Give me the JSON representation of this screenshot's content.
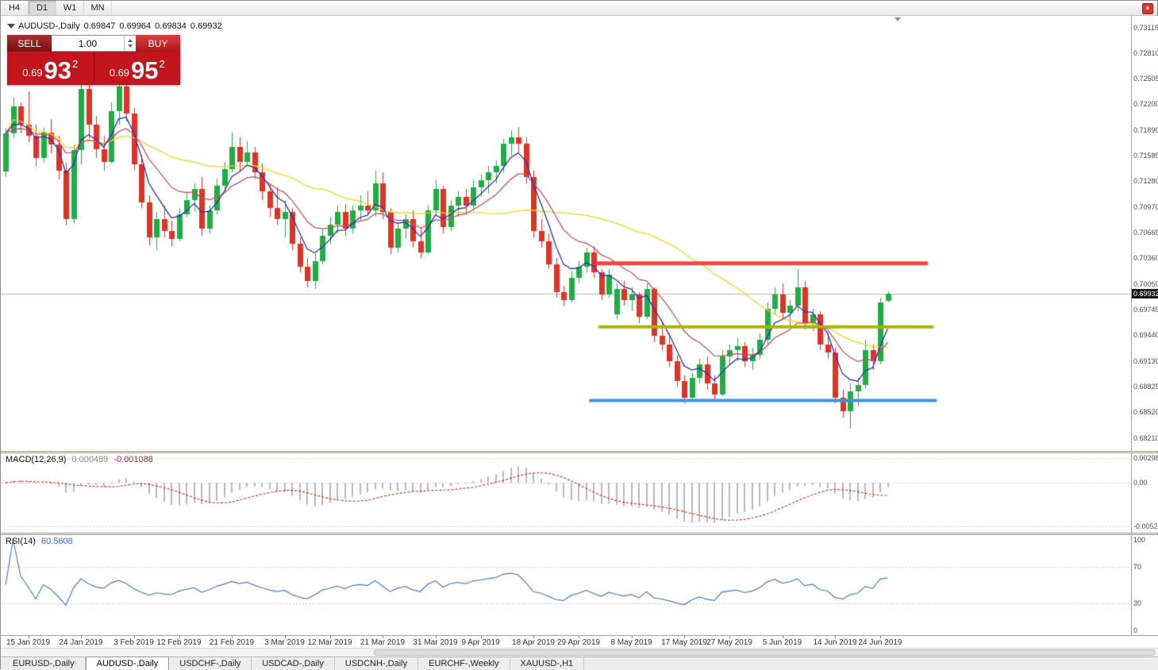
{
  "toolbar": {
    "timeframes": [
      "H4",
      "D1",
      "W1",
      "MN"
    ],
    "active": "D1"
  },
  "chart": {
    "title": "AUDUSD-,Daily",
    "open": "0.69847",
    "high": "0.69964",
    "low": "0.69834",
    "close": "0.69932",
    "bid_label": "0.69932"
  },
  "trade_panel": {
    "sell_label": "SELL",
    "buy_label": "BUY",
    "volume": "1.00",
    "sell_price": {
      "small": "0.69",
      "big": "93",
      "sup": "2"
    },
    "buy_price": {
      "small": "0.69",
      "big": "95",
      "sup": "2"
    }
  },
  "indicators": {
    "macd": {
      "name": "MACD(12,26,9)",
      "value_main": "0.000489",
      "value_signal": "-0.001088"
    },
    "rsi": {
      "name": "RSI(14)",
      "value": "60.5608"
    }
  },
  "tabs": {
    "items": [
      "EURUSD-,Daily",
      "AUDUSD-,Daily",
      "USDCHF-,Daily",
      "USDCAD-,Daily",
      "USDCNH-,Daily",
      "EURCHF-,Weekly",
      "XAUUSD-,H1"
    ],
    "active_index": 1
  },
  "colors": {
    "candle_up": "#22ad44",
    "candle_down": "#e03328",
    "bid_line": "#b8b8b8",
    "panel_red": "#c2151d"
  },
  "chart_data": {
    "type": "candlestick",
    "symbol": "AUDUSD",
    "timeframe": "Daily",
    "bid": 0.69932,
    "price_scale": [
      "0.73115",
      "0.72810",
      "0.72505",
      "0.72200",
      "0.71890",
      "0.71585",
      "0.71280",
      "0.70970",
      "0.70665",
      "0.70360",
      "0.70050",
      "0.69745",
      "0.69440",
      "0.69130",
      "0.68825",
      "0.68520",
      "0.68210"
    ],
    "date_labels": [
      {
        "label": "15 Jan 2019",
        "idx": 3
      },
      {
        "label": "24 Jan 2019",
        "idx": 10
      },
      {
        "label": "3 Feb 2019",
        "idx": 17
      },
      {
        "label": "12 Feb 2019",
        "idx": 23
      },
      {
        "label": "21 Feb 2019",
        "idx": 30
      },
      {
        "label": "3 Mar 2019",
        "idx": 37
      },
      {
        "label": "12 Mar 2019",
        "idx": 43
      },
      {
        "label": "21 Mar 2019",
        "idx": 50
      },
      {
        "label": "31 Mar 2019",
        "idx": 57
      },
      {
        "label": "9 Apr 2019",
        "idx": 63
      },
      {
        "label": "18 Apr 2019",
        "idx": 70
      },
      {
        "label": "29 Apr 2019",
        "idx": 76
      },
      {
        "label": "8 May 2019",
        "idx": 83
      },
      {
        "label": "17 May 2019",
        "idx": 90
      },
      {
        "label": "27 May 2019",
        "idx": 96
      },
      {
        "label": "5 Jun 2019",
        "idx": 103
      },
      {
        "label": "14 Jun 2019",
        "idx": 110
      },
      {
        "label": "24 Jun 2019",
        "idx": 116
      }
    ],
    "hlines": [
      {
        "name": "resistance-line",
        "color": "#f8453f",
        "price": 0.703,
        "from_idx": 78.4,
        "to_idx": 122.3,
        "width": 5
      },
      {
        "name": "mid-level-line",
        "color": "#a9b408",
        "price": 0.6954,
        "from_idx": 78.6,
        "to_idx": 123.1,
        "width": 4
      },
      {
        "name": "support-line",
        "color": "#4191dd",
        "price": 0.6866,
        "from_idx": 77.4,
        "to_idx": 123.5,
        "width": 4
      }
    ],
    "moving_averages": [
      {
        "name": "slow-ma",
        "type": "sma",
        "period": 34,
        "color": "#f2d21f"
      },
      {
        "name": "medium-ma",
        "type": "ema",
        "period": 12,
        "color": "#c25060"
      },
      {
        "name": "fast-ma",
        "type": "ema",
        "period": 5,
        "color": "#3030b0"
      }
    ],
    "macd": {
      "fast": 12,
      "slow": 26,
      "signal": 9,
      "scale": [
        "0.002984",
        "0.00",
        "-0.00525"
      ],
      "histogram_color": "#b9b9b9",
      "signal_color": "#cf2a27"
    },
    "rsi": {
      "period": 14,
      "levels": [
        70,
        30
      ],
      "scale": [
        "100",
        "70",
        "30",
        "0"
      ],
      "line_color": "#4a7db8"
    },
    "candles": [
      [
        0.714,
        0.7192,
        0.7133,
        0.7185
      ],
      [
        0.7185,
        0.7228,
        0.718,
        0.7218
      ],
      [
        0.7218,
        0.7222,
        0.7185,
        0.7196
      ],
      [
        0.7196,
        0.7236,
        0.7175,
        0.7182
      ],
      [
        0.7182,
        0.7196,
        0.7146,
        0.7156
      ],
      [
        0.7156,
        0.7192,
        0.715,
        0.7186
      ],
      [
        0.7186,
        0.7202,
        0.7162,
        0.7172
      ],
      [
        0.7172,
        0.7182,
        0.713,
        0.7141
      ],
      [
        0.7141,
        0.715,
        0.7075,
        0.7083
      ],
      [
        0.7083,
        0.7172,
        0.7078,
        0.7165
      ],
      [
        0.7165,
        0.7246,
        0.7148,
        0.7238
      ],
      [
        0.7238,
        0.7243,
        0.718,
        0.7196
      ],
      [
        0.7196,
        0.7206,
        0.7156,
        0.7166
      ],
      [
        0.7166,
        0.7182,
        0.7141,
        0.7151
      ],
      [
        0.7151,
        0.7222,
        0.7149,
        0.7212
      ],
      [
        0.7212,
        0.7249,
        0.7196,
        0.7241
      ],
      [
        0.7241,
        0.7246,
        0.72,
        0.7209
      ],
      [
        0.7209,
        0.7216,
        0.7141,
        0.7148
      ],
      [
        0.7148,
        0.7159,
        0.7096,
        0.7103
      ],
      [
        0.7103,
        0.7111,
        0.7052,
        0.7061
      ],
      [
        0.7061,
        0.7091,
        0.7046,
        0.7083
      ],
      [
        0.7083,
        0.7099,
        0.7061,
        0.7069
      ],
      [
        0.7069,
        0.7081,
        0.7051,
        0.7059
      ],
      [
        0.7059,
        0.7096,
        0.7056,
        0.7089
      ],
      [
        0.7089,
        0.7116,
        0.7086,
        0.7106
      ],
      [
        0.7106,
        0.7126,
        0.7091,
        0.7119
      ],
      [
        0.7119,
        0.7133,
        0.7063,
        0.7071
      ],
      [
        0.7071,
        0.7099,
        0.7066,
        0.7093
      ],
      [
        0.7093,
        0.7131,
        0.7089,
        0.7123
      ],
      [
        0.7123,
        0.7151,
        0.7116,
        0.7143
      ],
      [
        0.7143,
        0.7186,
        0.7139,
        0.7169
      ],
      [
        0.7169,
        0.7181,
        0.7141,
        0.7151
      ],
      [
        0.7151,
        0.7176,
        0.7146,
        0.7163
      ],
      [
        0.7163,
        0.7169,
        0.7131,
        0.7139
      ],
      [
        0.7139,
        0.7149,
        0.7106,
        0.7116
      ],
      [
        0.7116,
        0.7126,
        0.7086,
        0.7096
      ],
      [
        0.7096,
        0.7121,
        0.7076,
        0.7083
      ],
      [
        0.7083,
        0.7106,
        0.7061,
        0.7091
      ],
      [
        0.7091,
        0.7096,
        0.7046,
        0.7053
      ],
      [
        0.7053,
        0.7061,
        0.7019,
        0.7026
      ],
      [
        0.7026,
        0.7036,
        0.7001,
        0.7009
      ],
      [
        0.7009,
        0.7041,
        0.6999,
        0.7033
      ],
      [
        0.7033,
        0.7071,
        0.7029,
        0.7063
      ],
      [
        0.7063,
        0.7086,
        0.7053,
        0.7076
      ],
      [
        0.7076,
        0.7099,
        0.7066,
        0.7091
      ],
      [
        0.7091,
        0.7101,
        0.7063,
        0.7071
      ],
      [
        0.7071,
        0.7099,
        0.7066,
        0.7093
      ],
      [
        0.7093,
        0.7111,
        0.7081,
        0.7099
      ],
      [
        0.7099,
        0.7116,
        0.7089,
        0.7093
      ],
      [
        0.7093,
        0.7141,
        0.7086,
        0.7126
      ],
      [
        0.7126,
        0.7139,
        0.7083,
        0.7091
      ],
      [
        0.7091,
        0.7096,
        0.7041,
        0.7049
      ],
      [
        0.7049,
        0.7079,
        0.7043,
        0.7071
      ],
      [
        0.7071,
        0.7089,
        0.7059,
        0.7083
      ],
      [
        0.7083,
        0.7093,
        0.7049,
        0.7056
      ],
      [
        0.7056,
        0.7073,
        0.7036,
        0.7043
      ],
      [
        0.7043,
        0.7099,
        0.7041,
        0.7093
      ],
      [
        0.7093,
        0.7129,
        0.7089,
        0.7119
      ],
      [
        0.7119,
        0.7123,
        0.7066,
        0.7073
      ],
      [
        0.7073,
        0.7106,
        0.7069,
        0.7099
      ],
      [
        0.7099,
        0.7116,
        0.7086,
        0.7109
      ],
      [
        0.7109,
        0.7119,
        0.7089,
        0.7099
      ],
      [
        0.7099,
        0.7129,
        0.7093,
        0.7121
      ],
      [
        0.7121,
        0.7136,
        0.7109,
        0.7129
      ],
      [
        0.7129,
        0.7146,
        0.7113,
        0.7139
      ],
      [
        0.7139,
        0.7153,
        0.7126,
        0.7146
      ],
      [
        0.7146,
        0.7179,
        0.7139,
        0.7173
      ],
      [
        0.7173,
        0.7189,
        0.7159,
        0.7181
      ],
      [
        0.7181,
        0.7193,
        0.7163,
        0.7173
      ],
      [
        0.7173,
        0.7181,
        0.7126,
        0.7133
      ],
      [
        0.7133,
        0.7141,
        0.7061,
        0.7069
      ],
      [
        0.7069,
        0.7083,
        0.7049,
        0.7056
      ],
      [
        0.7056,
        0.7066,
        0.7023,
        0.7029
      ],
      [
        0.7029,
        0.7036,
        0.6989,
        0.6996
      ],
      [
        0.6996,
        0.7003,
        0.6979,
        0.6986
      ],
      [
        0.6986,
        0.7021,
        0.6983,
        0.7013
      ],
      [
        0.7013,
        0.7033,
        0.7006,
        0.7026
      ],
      [
        0.7026,
        0.7049,
        0.7019,
        0.7043
      ],
      [
        0.7043,
        0.7051,
        0.7013,
        0.7019
      ],
      [
        0.7019,
        0.7023,
        0.6986,
        0.6993
      ],
      [
        0.6993,
        0.7023,
        0.6989,
        0.7016
      ],
      [
        0.6969,
        0.7006,
        0.6963,
        0.6999
      ],
      [
        0.6999,
        0.7009,
        0.6979,
        0.6986
      ],
      [
        0.6986,
        0.7001,
        0.6973,
        0.6993
      ],
      [
        0.6993,
        0.6996,
        0.6959,
        0.6966
      ],
      [
        0.6966,
        0.7006,
        0.6963,
        0.6999
      ],
      [
        0.6999,
        0.7001,
        0.6936,
        0.6943
      ],
      [
        0.6943,
        0.6959,
        0.6926,
        0.6933
      ],
      [
        0.6933,
        0.6946,
        0.6906,
        0.6913
      ],
      [
        0.6913,
        0.6921,
        0.6883,
        0.6889
      ],
      [
        0.6889,
        0.6896,
        0.6863,
        0.6869
      ],
      [
        0.6869,
        0.6899,
        0.6866,
        0.6893
      ],
      [
        0.6893,
        0.6916,
        0.6886,
        0.6909
      ],
      [
        0.6909,
        0.6919,
        0.6879,
        0.6886
      ],
      [
        0.6886,
        0.6896,
        0.6866,
        0.6873
      ],
      [
        0.6873,
        0.6926,
        0.6871,
        0.6919
      ],
      [
        0.6919,
        0.6933,
        0.6909,
        0.6926
      ],
      [
        0.6926,
        0.6941,
        0.6913,
        0.6931
      ],
      [
        0.6931,
        0.6936,
        0.6906,
        0.6913
      ],
      [
        0.6913,
        0.6929,
        0.6903,
        0.6921
      ],
      [
        0.6921,
        0.6946,
        0.6916,
        0.6939
      ],
      [
        0.6939,
        0.6983,
        0.6933,
        0.6976
      ],
      [
        0.6976,
        0.7001,
        0.6969,
        0.6993
      ],
      [
        0.6993,
        0.7006,
        0.6963,
        0.6971
      ],
      [
        0.6971,
        0.6986,
        0.6956,
        0.6979
      ],
      [
        0.6979,
        0.7023,
        0.6973,
        0.7001
      ],
      [
        0.7001,
        0.7009,
        0.6951,
        0.6959
      ],
      [
        0.6959,
        0.6976,
        0.6949,
        0.6969
      ],
      [
        0.6969,
        0.6973,
        0.6926,
        0.6933
      ],
      [
        0.6933,
        0.6946,
        0.6916,
        0.6923
      ],
      [
        0.6923,
        0.6929,
        0.6863,
        0.6869
      ],
      [
        0.6869,
        0.6879,
        0.6846,
        0.6853
      ],
      [
        0.6853,
        0.6886,
        0.6832,
        0.6877
      ],
      [
        0.6877,
        0.6893,
        0.6859,
        0.6885
      ],
      [
        0.6885,
        0.6939,
        0.6881,
        0.6926
      ],
      [
        0.6926,
        0.6933,
        0.6903,
        0.6913
      ],
      [
        0.6913,
        0.6989,
        0.6909,
        0.6983
      ],
      [
        0.69847,
        0.69964,
        0.69834,
        0.69932
      ]
    ]
  }
}
